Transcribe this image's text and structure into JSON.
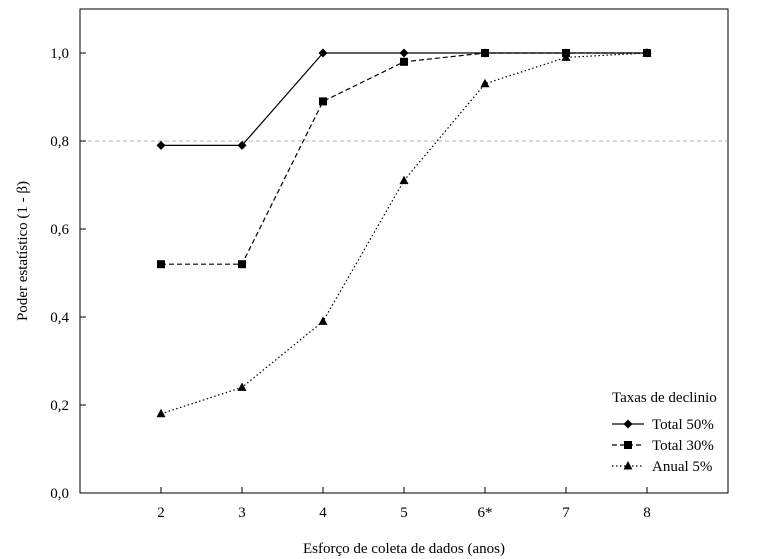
{
  "chart_data": {
    "type": "line",
    "xlabel": "Esforço de coleta de dados (anos)",
    "ylabel": "Poder estatístico (1 - β)",
    "categories": [
      "2",
      "3",
      "4",
      "5",
      "6*",
      "7",
      "8"
    ],
    "x": [
      2,
      3,
      4,
      5,
      6,
      7,
      8
    ],
    "xlim": [
      1,
      9
    ],
    "ylim": [
      0.0,
      1.1
    ],
    "yticks": [
      0.0,
      0.2,
      0.4,
      0.6,
      0.8,
      1.0
    ],
    "ytick_labels": [
      "0,0",
      "0,2",
      "0,4",
      "0,6",
      "0,8",
      "1,0"
    ],
    "reference_line": {
      "y": 0.8,
      "style": "dashed",
      "color": "#b0b0b0"
    },
    "grid": false,
    "legend": {
      "title": "Taxas de declinio",
      "position": "bottom-right"
    },
    "series": [
      {
        "name": "Total 50%",
        "marker": "diamond",
        "line": "solid",
        "color": "#000000",
        "values": [
          0.79,
          0.79,
          1.0,
          1.0,
          1.0,
          1.0,
          1.0
        ]
      },
      {
        "name": "Total 30%",
        "marker": "square",
        "line": "dashed",
        "color": "#000000",
        "values": [
          0.52,
          0.52,
          0.89,
          0.98,
          1.0,
          1.0,
          1.0
        ]
      },
      {
        "name": "Anual 5%",
        "marker": "triangle",
        "line": "dotted",
        "color": "#000000",
        "values": [
          0.18,
          0.24,
          0.39,
          0.71,
          0.93,
          0.99,
          1.0
        ]
      }
    ]
  }
}
